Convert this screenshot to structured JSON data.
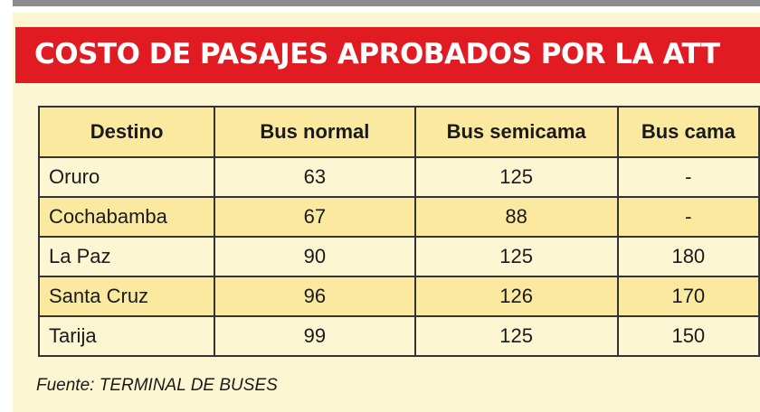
{
  "title": "COSTO DE PASAJES APROBADOS POR LA ATT",
  "colors": {
    "banner": "#e11b22",
    "header_row": "#fbe9a0",
    "row_light": "#fdf6d2",
    "row_dark": "#fbe9a0"
  },
  "table": {
    "headers": [
      "Destino",
      "Bus normal",
      "Bus semicama",
      "Bus cama"
    ],
    "rows": [
      [
        "Oruro",
        "63",
        "125",
        "-"
      ],
      [
        "Cochabamba",
        "67",
        "88",
        "-"
      ],
      [
        "La Paz",
        "90",
        "125",
        "180"
      ],
      [
        "Santa Cruz",
        "96",
        "126",
        "170"
      ],
      [
        "Tarija",
        "99",
        "125",
        "150"
      ]
    ]
  },
  "source": "Fuente: TERMINAL DE BUSES"
}
